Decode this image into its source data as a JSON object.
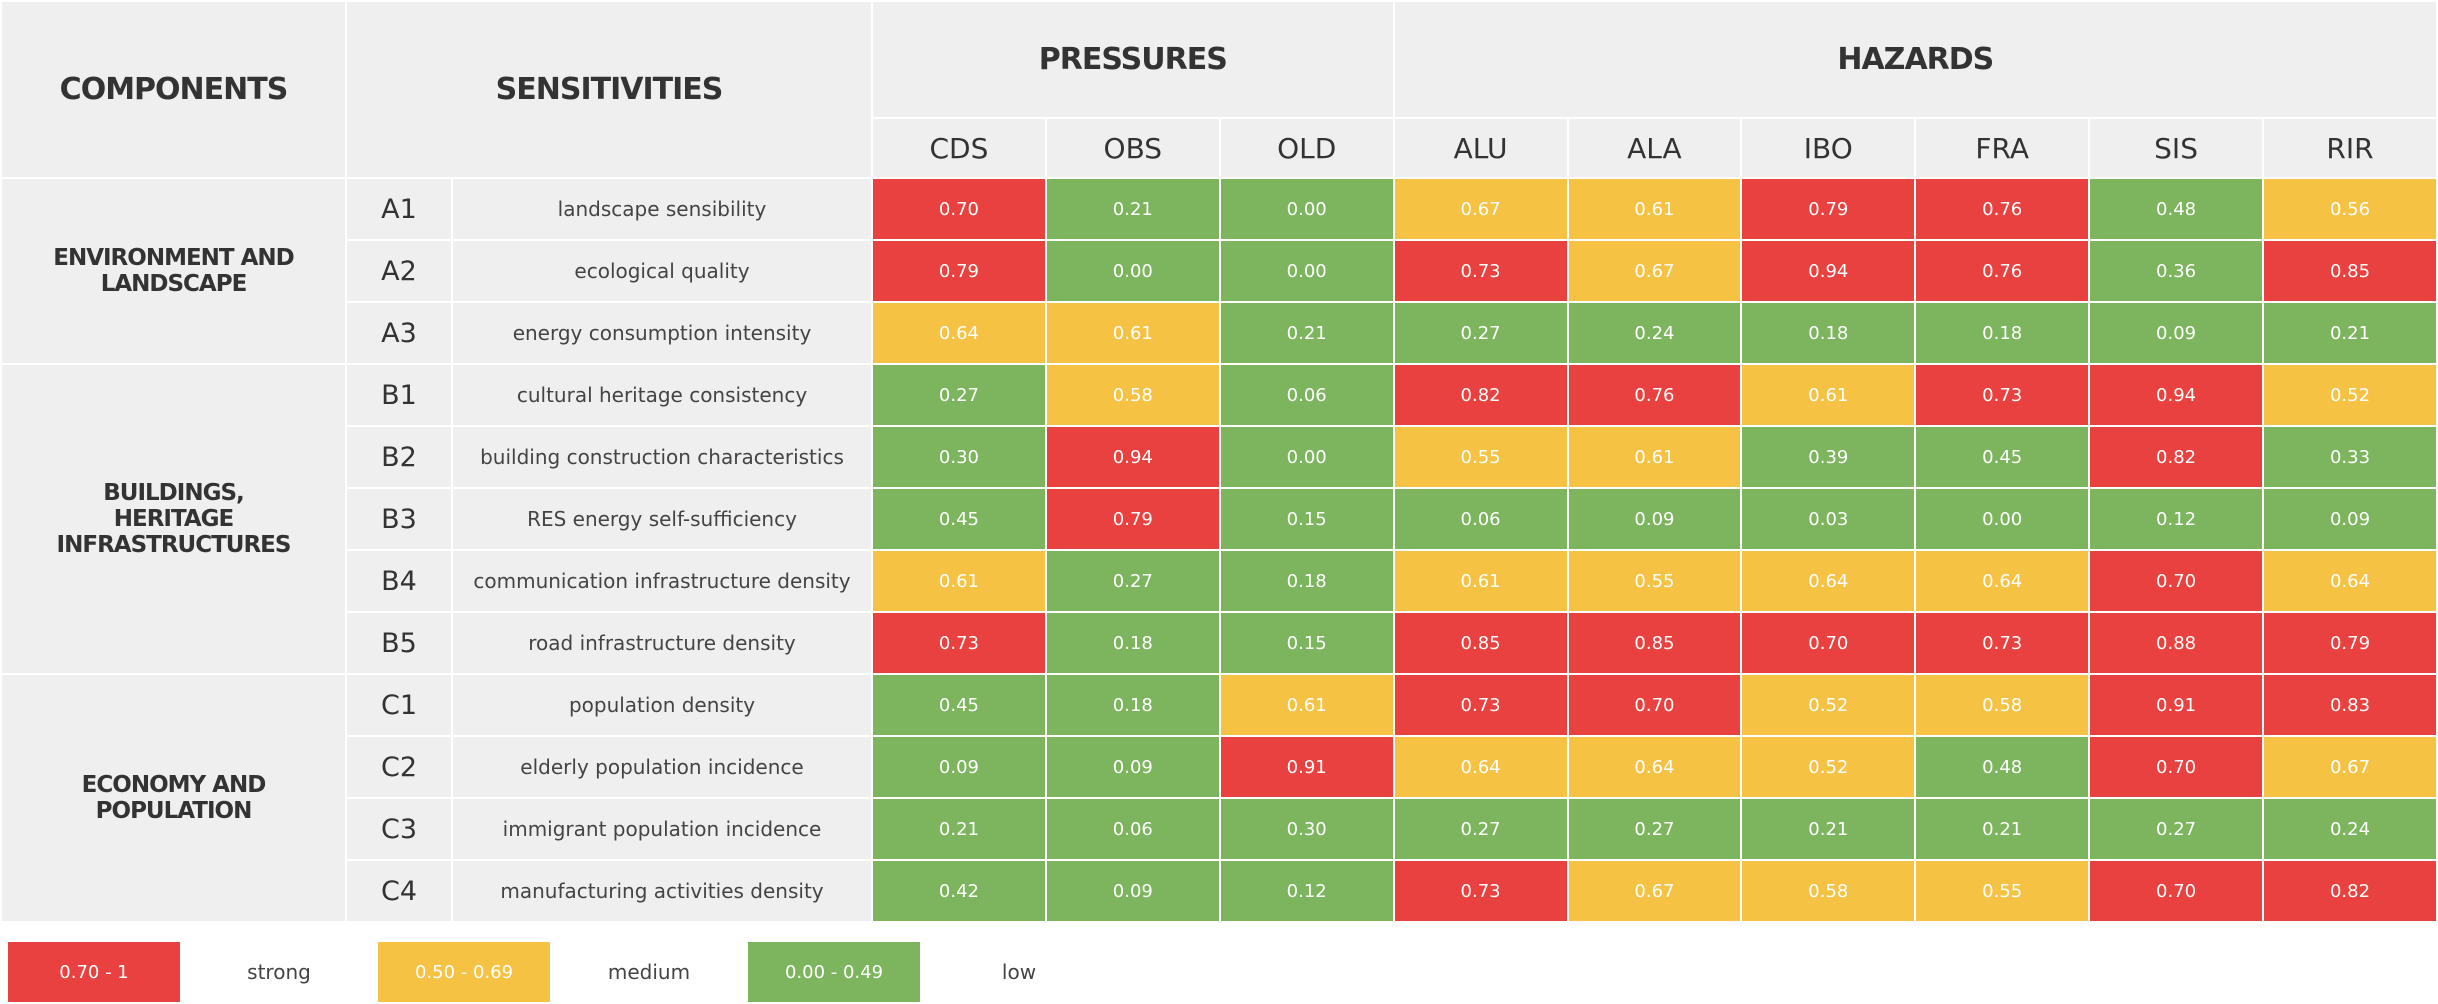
{
  "header": {
    "components": "COMPONENTS",
    "sensitivities": "SENSITIVITIES",
    "groups": [
      {
        "label": "PRESSURES",
        "columns": [
          "CDS",
          "OBS",
          "OLD"
        ]
      },
      {
        "label": "HAZARDS",
        "columns": [
          "ALU",
          "ALA",
          "IBO",
          "FRA",
          "SIS",
          "RIR"
        ]
      }
    ]
  },
  "components": [
    {
      "label": "ENVIRONMENT AND LANDSCAPE",
      "rows": [
        {
          "code": "A1",
          "label": "landscape sensibility",
          "values": [
            "0.70",
            "0.21",
            "0.00",
            "0.67",
            "0.61",
            "0.79",
            "0.76",
            "0.48",
            "0.56"
          ]
        },
        {
          "code": "A2",
          "label": "ecological quality",
          "values": [
            "0.79",
            "0.00",
            "0.00",
            "0.73",
            "0.67",
            "0.94",
            "0.76",
            "0.36",
            "0.85"
          ]
        },
        {
          "code": "A3",
          "label": "energy consumption intensity",
          "values": [
            "0.64",
            "0.61",
            "0.21",
            "0.27",
            "0.24",
            "0.18",
            "0.18",
            "0.09",
            "0.21"
          ]
        }
      ]
    },
    {
      "label": "BUILDINGS, HERITAGE INFRASTRUCTURES",
      "rows": [
        {
          "code": "B1",
          "label": "cultural heritage consistency",
          "values": [
            "0.27",
            "0.58",
            "0.06",
            "0.82",
            "0.76",
            "0.61",
            "0.73",
            "0.94",
            "0.52"
          ]
        },
        {
          "code": "B2",
          "label": "building construction characteristics",
          "values": [
            "0.30",
            "0.94",
            "0.00",
            "0.55",
            "0.61",
            "0.39",
            "0.45",
            "0.82",
            "0.33"
          ]
        },
        {
          "code": "B3",
          "label": "RES energy self-sufficiency",
          "values": [
            "0.45",
            "0.79",
            "0.15",
            "0.06",
            "0.09",
            "0.03",
            "0.00",
            "0.12",
            "0.09"
          ]
        },
        {
          "code": "B4",
          "label": "communication infrastructure density",
          "values": [
            "0.61",
            "0.27",
            "0.18",
            "0.61",
            "0.55",
            "0.64",
            "0.64",
            "0.70",
            "0.64"
          ]
        },
        {
          "code": "B5",
          "label": "road infrastructure density",
          "values": [
            "0.73",
            "0.18",
            "0.15",
            "0.85",
            "0.85",
            "0.70",
            "0.73",
            "0.88",
            "0.79"
          ]
        }
      ]
    },
    {
      "label": "ECONOMY AND POPULATION",
      "rows": [
        {
          "code": "C1",
          "label": "population density",
          "values": [
            "0.45",
            "0.18",
            "0.61",
            "0.73",
            "0.70",
            "0.52",
            "0.58",
            "0.91",
            "0.83"
          ]
        },
        {
          "code": "C2",
          "label": "elderly population incidence",
          "values": [
            "0.09",
            "0.09",
            "0.91",
            "0.64",
            "0.64",
            "0.52",
            "0.48",
            "0.70",
            "0.67"
          ]
        },
        {
          "code": "C3",
          "label": "immigrant population incidence",
          "values": [
            "0.21",
            "0.06",
            "0.30",
            "0.27",
            "0.27",
            "0.21",
            "0.21",
            "0.27",
            "0.24"
          ]
        },
        {
          "code": "C4",
          "label": "manufacturing activities density",
          "values": [
            "0.42",
            "0.09",
            "0.12",
            "0.73",
            "0.67",
            "0.58",
            "0.55",
            "0.70",
            "0.82"
          ]
        }
      ]
    }
  ],
  "legend": [
    {
      "range": "0.70 - 1",
      "label": "strong",
      "color": "#e8413f"
    },
    {
      "range": "0.50 - 0.69",
      "label": "medium",
      "color": "#f6c244"
    },
    {
      "range": "0.00 - 0.49",
      "label": "low",
      "color": "#7cb55d"
    }
  ]
}
